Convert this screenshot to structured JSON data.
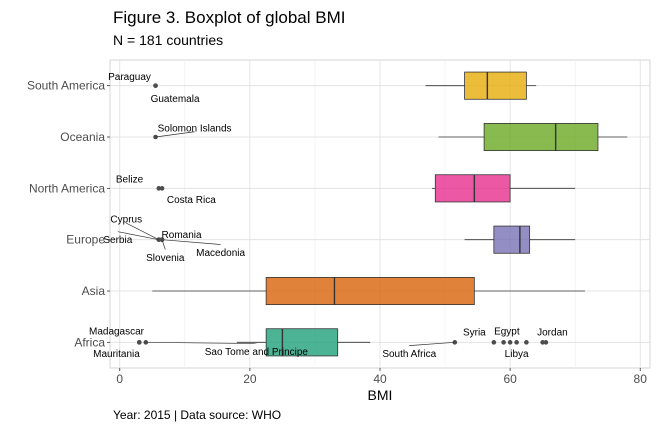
{
  "chart_data": {
    "type": "boxplot",
    "title": "Figure 3. Boxplot of global BMI",
    "subtitle": "N = 181 countries",
    "caption": "Year: 2015 | Data source: WHO",
    "xlabel": "BMI",
    "ylabel": "",
    "xlim": [
      -1.5,
      81.5
    ],
    "x_ticks": [
      0,
      20,
      40,
      60,
      80
    ],
    "grid": true,
    "legend": "none",
    "categories": [
      "South America",
      "Oceania",
      "North America",
      "Europe",
      "Asia",
      "Africa"
    ],
    "boxes": [
      {
        "category": "South America",
        "color": "#E6AB02",
        "whisker_low": 47,
        "q1": 53,
        "median": 56.5,
        "q3": 62.5,
        "whisker_high": 64,
        "outliers": [
          {
            "x": 5.5,
            "label": "Paraguay",
            "label_x": 1.5,
            "label_y": 0.18
          },
          {
            "x": 5.5,
            "label": "Guatemala",
            "label_x": 8.5,
            "label_y": -0.25
          }
        ]
      },
      {
        "category": "Oceania",
        "color": "#66A61E",
        "whisker_low": 49,
        "q1": 56,
        "median": 67,
        "q3": 73.5,
        "whisker_high": 78,
        "outliers": [
          {
            "x": 5.5,
            "label": "Solomon Islands",
            "label_x": 11.5,
            "label_y": 0.18
          }
        ]
      },
      {
        "category": "North America",
        "color": "#E7298A",
        "whisker_low": 48,
        "q1": 48.5,
        "median": 54.5,
        "q3": 60,
        "whisker_high": 70,
        "outliers": [
          {
            "x": 6,
            "label": "Belize",
            "label_x": 1.5,
            "label_y": 0.18
          },
          {
            "x": 6.5,
            "label": "Costa Rica",
            "label_x": 11,
            "label_y": -0.22
          }
        ]
      },
      {
        "category": "Europe",
        "color": "#7570B3",
        "whisker_low": 53,
        "q1": 57.5,
        "median": 61.5,
        "q3": 63,
        "whisker_high": 70,
        "outliers": [
          {
            "x": 6,
            "label": "Cyprus",
            "label_x": 1,
            "label_y": 0.4
          },
          {
            "x": 6.5,
            "label": "Romania",
            "label_x": 9.5,
            "label_y": 0.1
          },
          {
            "x": 6,
            "label": "Serbia",
            "label_x": -0.3,
            "label_y": 0
          },
          {
            "x": 6.5,
            "label": "Macedonia",
            "label_x": 15.5,
            "label_y": -0.25
          },
          {
            "x": 6.5,
            "label": "Slovenia",
            "label_x": 7,
            "label_y": -0.35
          }
        ]
      },
      {
        "category": "Asia",
        "color": "#D95F02",
        "whisker_low": 5,
        "q1": 22.5,
        "median": 33,
        "q3": 54.5,
        "whisker_high": 71.5,
        "outliers": []
      },
      {
        "category": "Africa",
        "color": "#1B9E77",
        "whisker_low": 18,
        "q1": 22.5,
        "median": 25,
        "q3": 33.5,
        "whisker_high": 38.5,
        "outliers": [
          {
            "x": 3,
            "label": "Madagascar",
            "label_x": -0.5,
            "label_y": 0.22
          },
          {
            "x": 3,
            "label": "Mauritania",
            "label_x": -0.5,
            "label_y": -0.22
          },
          {
            "x": 4,
            "label": "Sao Tome and Principe",
            "label_x": 21,
            "label_y": -0.18
          },
          {
            "x": 51.5,
            "label": "South Africa",
            "label_x": 44.5,
            "label_y": -0.22
          },
          {
            "x": 57.5,
            "label": "Syria",
            "label_x": 54.5,
            "label_y": 0.2
          },
          {
            "x": 59,
            "label": "",
            "label_x": 0,
            "label_y": 0
          },
          {
            "x": 60,
            "label": "",
            "label_x": 0,
            "label_y": 0
          },
          {
            "x": 61,
            "label": "Libya",
            "label_x": 61,
            "label_y": -0.22
          },
          {
            "x": 62.5,
            "label": "Egypt",
            "label_x": 59.5,
            "label_y": 0.22
          },
          {
            "x": 65,
            "label": "",
            "label_x": 0,
            "label_y": 0
          },
          {
            "x": 65.5,
            "label": "Jordan",
            "label_x": 66.5,
            "label_y": 0.2
          }
        ]
      }
    ]
  }
}
